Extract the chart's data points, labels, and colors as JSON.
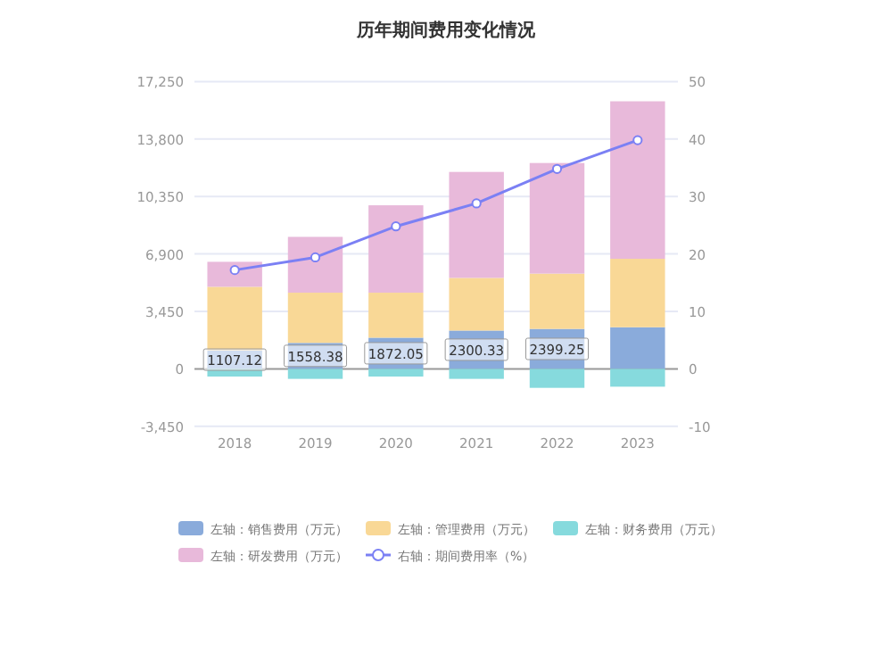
{
  "chart_data": {
    "type": "bar",
    "title": "历年期间费用变化情况",
    "categories": [
      "2018",
      "2019",
      "2020",
      "2021",
      "2022",
      "2023"
    ],
    "stacked": true,
    "series": [
      {
        "name": "左轴：销售费用（万元）",
        "color": "#8aabdb",
        "values": [
          1107.12,
          1558.38,
          1872.05,
          2300.33,
          2399.25,
          2500
        ],
        "value_labels": [
          "1107.12",
          "1558.38",
          "1872.05",
          "2300.33",
          "2399.25",
          null
        ]
      },
      {
        "name": "左轴：管理费用（万元）",
        "color": "#f9d896",
        "values": [
          3820,
          3015,
          2701,
          3162,
          3320,
          4108
        ]
      },
      {
        "name": "左轴：财务费用（万元）",
        "color": "#86dadd",
        "values": [
          -460,
          -600,
          -460,
          -600,
          -1140,
          -1070
        ]
      },
      {
        "name": "左轴：研发费用（万元）",
        "color": "#e8b9da",
        "values": [
          1500,
          3352,
          5248,
          6362,
          6641,
          9457
        ]
      },
      {
        "name": "右轴：期间费用率（%）",
        "type": "line",
        "axis": "y2",
        "color": "#7b80f4",
        "marker": "circle",
        "values": [
          17.2,
          19.4,
          24.8,
          28.8,
          34.8,
          39.8
        ]
      }
    ],
    "ylim": [
      -3450,
      17250
    ],
    "yticks": [
      {
        "value": -3450,
        "label": "-3,450"
      },
      0,
      {
        "value": 3450,
        "label": "3,450"
      },
      {
        "value": 6900,
        "label": "6,900"
      },
      {
        "value": 10350,
        "label": "10,350"
      },
      {
        "value": 13800,
        "label": "13,800"
      },
      {
        "value": 17250,
        "label": "17,250"
      }
    ],
    "y2lim": [
      -10,
      50
    ],
    "y2ticks": [
      -10,
      0,
      10,
      20,
      30,
      40,
      50
    ],
    "grid": "y",
    "legend": "bottom"
  }
}
